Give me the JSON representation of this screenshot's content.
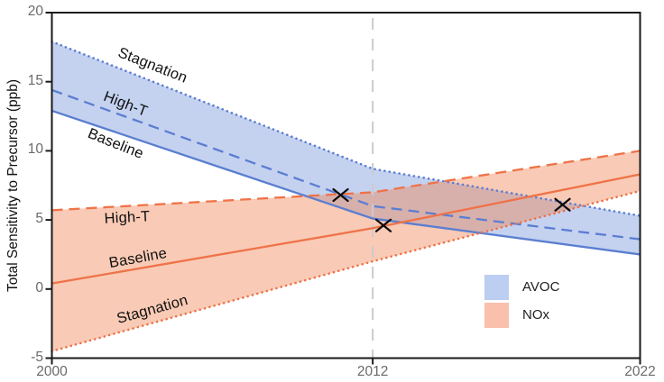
{
  "chart_data": {
    "type": "area",
    "title": "",
    "xlabel": "",
    "ylabel": "Total Sensitivity to Precursor (ppb)",
    "xlim": [
      2000,
      2022
    ],
    "ylim": [
      -5,
      20
    ],
    "grid": false,
    "xticks": [
      {
        "v": 2000,
        "label": "2000"
      },
      {
        "v": 2012,
        "label": "2012"
      },
      {
        "v": 2022,
        "label": "2022"
      }
    ],
    "yticks": [
      {
        "v": 20,
        "label": "20"
      },
      {
        "v": 15,
        "label": "15"
      },
      {
        "v": 10,
        "label": "10"
      },
      {
        "v": 5,
        "label": "5"
      },
      {
        "v": 0,
        "label": "0"
      },
      {
        "v": -5,
        "label": "-5"
      }
    ],
    "guide_line": {
      "x": 2012,
      "color": "#cbcbcb"
    },
    "groups": [
      {
        "name": "AVOC",
        "line_color": "#5b7ed1",
        "fill_color": "#7294dc",
        "band_between": [
          "Stagnation",
          "Baseline"
        ],
        "series": [
          {
            "name": "Stagnation",
            "style": "dotted",
            "x": [
              2000,
              2012,
              2022
            ],
            "y": [
              17.9,
              8.7,
              5.3
            ]
          },
          {
            "name": "High-T",
            "style": "dashed",
            "x": [
              2000,
              2012,
              2022
            ],
            "y": [
              14.4,
              6.0,
              3.6
            ]
          },
          {
            "name": "Baseline",
            "style": "solid",
            "x": [
              2000,
              2012,
              2022
            ],
            "y": [
              12.9,
              5.1,
              2.5
            ]
          }
        ]
      },
      {
        "name": "NOx",
        "line_color": "#ee7348",
        "fill_color": "#f0814f",
        "band_between": [
          "High-T",
          "Stagnation"
        ],
        "series": [
          {
            "name": "High-T",
            "style": "dashed",
            "x": [
              2000,
              2012,
              2022
            ],
            "y": [
              5.7,
              7.0,
              10.0
            ]
          },
          {
            "name": "Baseline",
            "style": "solid",
            "x": [
              2000,
              2012,
              2022
            ],
            "y": [
              0.4,
              4.4,
              8.3
            ]
          },
          {
            "name": "Stagnation",
            "style": "dotted",
            "x": [
              2000,
              2012,
              2022
            ],
            "y": [
              -4.5,
              2.0,
              7.1
            ]
          }
        ]
      }
    ],
    "markers": [
      {
        "symbol": "x",
        "x": 2010.8,
        "y": 6.8
      },
      {
        "symbol": "x",
        "x": 2012.4,
        "y": 4.6
      },
      {
        "symbol": "x",
        "x": 2019.1,
        "y": 6.1
      }
    ],
    "legend": [
      {
        "label": "AVOC",
        "swatch": "#bccef1"
      },
      {
        "label": "NOx",
        "swatch": "#f9c0ab"
      }
    ],
    "legend_position": "lower right",
    "frame_color": "#1a1a1a",
    "tick_label_color": "#6b6b6b"
  }
}
